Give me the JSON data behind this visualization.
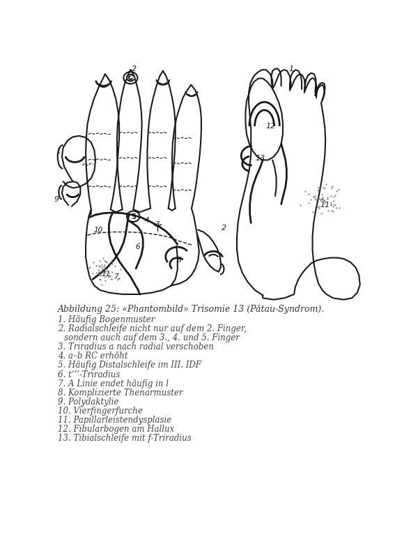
{
  "title": "Abbildung 25: «Phantombild» Trisomie 13 (Pätau-Syndrom).",
  "legend_items": [
    " 1. Häufig Bogenmuster",
    " 2. Radialschleife nicht nur auf dem 2. Finger,",
    "     sondern auch auf dem 3., 4. und 5. Finger",
    " 3. Triradius a nach radial verschoben",
    " 4. a–b RC erhöht",
    " 5. Häufig Distalschleife im III. IDF",
    " 6. t’’’-Triradius",
    " 7. A Linie endet häufig in l",
    " 8. Komplizierte Thenarmuster",
    " 9. Polydaktylie",
    "10. Vierfingerfurche",
    "11. Papillarleistendysplasie",
    "12. Fibularbogen am Hallux",
    "13. Tibialschleife mit f-Triradius"
  ],
  "bg_color": "#ffffff",
  "lc": "#1a1a1a",
  "figure_width": 6.0,
  "figure_height": 7.7
}
